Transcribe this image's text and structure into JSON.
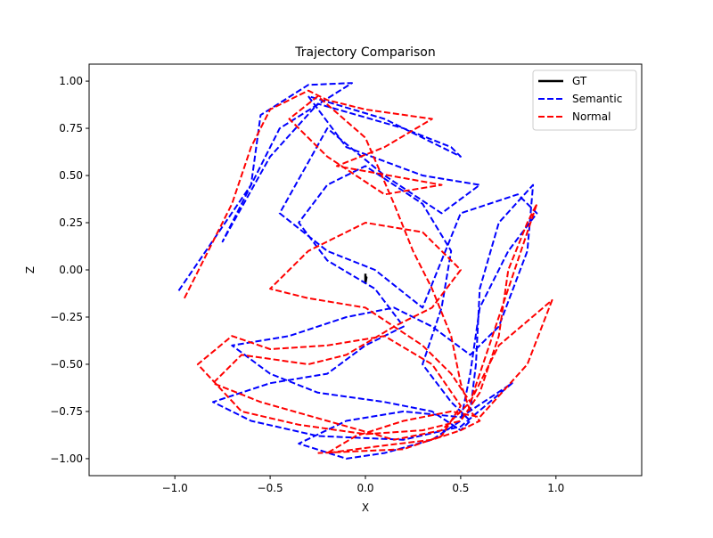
{
  "chart_data": {
    "type": "line",
    "title": "Trajectory Comparison",
    "xlabel": "X",
    "ylabel": "Z",
    "xlim": [
      -1.45,
      1.45
    ],
    "ylim": [
      -1.09,
      1.09
    ],
    "x_ticks": [
      -1.0,
      -0.5,
      0.0,
      0.5,
      1.0
    ],
    "x_tick_labels": [
      "−1.0",
      "−0.5",
      "0.0",
      "0.5",
      "1.0"
    ],
    "y_ticks": [
      -1.0,
      -0.75,
      -0.5,
      -0.25,
      0.0,
      0.25,
      0.5,
      0.75,
      1.0
    ],
    "y_tick_labels": [
      "−1.00",
      "−0.75",
      "−0.50",
      "−0.25",
      "0.00",
      "0.25",
      "0.50",
      "0.75",
      "1.00"
    ],
    "grid": false,
    "legend_position": "top-right",
    "series": [
      {
        "name": "GT",
        "color": "#000000",
        "style": "solid",
        "points": [
          [
            0.0,
            -0.02
          ],
          [
            0.0,
            -0.07
          ],
          [
            0.005,
            -0.04
          ],
          [
            0.0,
            -0.06
          ]
        ]
      },
      {
        "name": "Semantic",
        "color": "#0000ff",
        "style": "dashed",
        "points": [
          [
            -0.98,
            -0.11
          ],
          [
            -0.6,
            0.45
          ],
          [
            -0.55,
            0.82
          ],
          [
            -0.3,
            0.98
          ],
          [
            -0.07,
            0.99
          ],
          [
            -0.45,
            0.75
          ],
          [
            -0.75,
            0.15
          ],
          [
            -0.5,
            0.6
          ],
          [
            -0.25,
            0.88
          ],
          [
            0.2,
            0.75
          ],
          [
            0.45,
            0.65
          ],
          [
            0.5,
            0.6
          ],
          [
            0.1,
            0.8
          ],
          [
            -0.3,
            0.92
          ],
          [
            -0.1,
            0.65
          ],
          [
            0.3,
            0.5
          ],
          [
            0.6,
            0.45
          ],
          [
            0.4,
            0.3
          ],
          [
            0.1,
            0.5
          ],
          [
            -0.2,
            0.75
          ],
          [
            -0.45,
            0.3
          ],
          [
            -0.2,
            0.1
          ],
          [
            0.05,
            0.0
          ],
          [
            0.3,
            -0.2
          ],
          [
            0.5,
            0.3
          ],
          [
            0.8,
            0.4
          ],
          [
            0.9,
            0.3
          ],
          [
            0.75,
            0.1
          ],
          [
            0.6,
            -0.2
          ],
          [
            0.55,
            -0.55
          ],
          [
            0.5,
            -0.8
          ],
          [
            0.35,
            -0.9
          ],
          [
            0.1,
            -0.97
          ],
          [
            -0.1,
            -1.0
          ],
          [
            -0.35,
            -0.92
          ],
          [
            -0.1,
            -0.8
          ],
          [
            0.2,
            -0.75
          ],
          [
            0.5,
            -0.78
          ],
          [
            0.77,
            -0.6
          ],
          [
            0.5,
            -0.83
          ],
          [
            0.2,
            -0.9
          ],
          [
            -0.25,
            -0.88
          ],
          [
            -0.6,
            -0.8
          ],
          [
            -0.8,
            -0.7
          ],
          [
            -0.5,
            -0.6
          ],
          [
            -0.2,
            -0.55
          ],
          [
            0.0,
            -0.4
          ],
          [
            0.2,
            -0.3
          ],
          [
            0.05,
            -0.1
          ],
          [
            -0.2,
            0.05
          ],
          [
            -0.35,
            0.25
          ],
          [
            -0.2,
            0.45
          ],
          [
            0.0,
            0.55
          ],
          [
            0.3,
            0.35
          ],
          [
            0.45,
            0.1
          ],
          [
            0.4,
            -0.2
          ],
          [
            0.3,
            -0.5
          ],
          [
            0.45,
            -0.7
          ],
          [
            0.55,
            -0.8
          ],
          [
            0.5,
            -0.85
          ],
          [
            0.35,
            -0.75
          ],
          [
            0.1,
            -0.7
          ],
          [
            -0.25,
            -0.65
          ],
          [
            -0.5,
            -0.55
          ],
          [
            -0.7,
            -0.4
          ],
          [
            -0.4,
            -0.35
          ],
          [
            -0.1,
            -0.25
          ],
          [
            0.15,
            -0.2
          ],
          [
            0.35,
            -0.3
          ],
          [
            0.55,
            -0.45
          ],
          [
            0.7,
            -0.3
          ],
          [
            0.85,
            0.1
          ],
          [
            0.88,
            0.45
          ],
          [
            0.7,
            0.25
          ],
          [
            0.6,
            -0.1
          ],
          [
            0.58,
            -0.5
          ],
          [
            0.55,
            -0.75
          ]
        ]
      },
      {
        "name": "Normal",
        "color": "#ff0000",
        "style": "dashed",
        "points": [
          [
            -0.95,
            -0.15
          ],
          [
            -0.7,
            0.35
          ],
          [
            -0.6,
            0.65
          ],
          [
            -0.5,
            0.85
          ],
          [
            -0.3,
            0.95
          ],
          [
            -0.2,
            0.9
          ],
          [
            0.0,
            0.85
          ],
          [
            0.35,
            0.8
          ],
          [
            0.1,
            0.65
          ],
          [
            -0.15,
            0.55
          ],
          [
            0.4,
            0.45
          ],
          [
            0.1,
            0.4
          ],
          [
            -0.2,
            0.6
          ],
          [
            -0.4,
            0.8
          ],
          [
            -0.25,
            0.92
          ],
          [
            0.0,
            0.7
          ],
          [
            0.15,
            0.35
          ],
          [
            0.25,
            0.1
          ],
          [
            0.35,
            -0.1
          ],
          [
            0.45,
            -0.35
          ],
          [
            0.5,
            -0.6
          ],
          [
            0.55,
            -0.75
          ],
          [
            0.6,
            -0.8
          ],
          [
            0.5,
            -0.85
          ],
          [
            0.35,
            -0.9
          ],
          [
            0.1,
            -0.93
          ],
          [
            -0.2,
            -0.97
          ],
          [
            -0.05,
            -0.88
          ],
          [
            0.2,
            -0.8
          ],
          [
            0.45,
            -0.75
          ],
          [
            0.6,
            -0.78
          ],
          [
            0.85,
            -0.5
          ],
          [
            0.98,
            -0.16
          ],
          [
            0.7,
            -0.4
          ],
          [
            0.55,
            -0.7
          ],
          [
            0.4,
            -0.85
          ],
          [
            0.15,
            -0.9
          ],
          [
            -0.2,
            -0.8
          ],
          [
            -0.55,
            -0.7
          ],
          [
            -0.8,
            -0.6
          ],
          [
            -0.65,
            -0.45
          ],
          [
            -0.3,
            -0.5
          ],
          [
            -0.1,
            -0.45
          ],
          [
            0.15,
            -0.3
          ],
          [
            0.35,
            -0.2
          ],
          [
            0.5,
            0.0
          ],
          [
            0.3,
            0.2
          ],
          [
            0.0,
            0.25
          ],
          [
            -0.3,
            0.1
          ],
          [
            -0.5,
            -0.1
          ],
          [
            -0.3,
            -0.15
          ],
          [
            0.0,
            -0.2
          ],
          [
            0.3,
            -0.4
          ],
          [
            0.45,
            -0.55
          ],
          [
            0.55,
            -0.7
          ],
          [
            0.65,
            -0.4
          ],
          [
            0.75,
            -0.1
          ],
          [
            0.85,
            0.2
          ],
          [
            0.9,
            0.35
          ],
          [
            0.85,
            0.25
          ],
          [
            0.75,
            0.0
          ],
          [
            0.7,
            -0.35
          ],
          [
            0.6,
            -0.65
          ],
          [
            0.5,
            -0.8
          ],
          [
            0.3,
            -0.85
          ],
          [
            0.0,
            -0.87
          ],
          [
            -0.35,
            -0.82
          ],
          [
            -0.65,
            -0.75
          ],
          [
            -0.88,
            -0.5
          ],
          [
            -0.7,
            -0.35
          ],
          [
            -0.5,
            -0.42
          ],
          [
            -0.2,
            -0.4
          ],
          [
            0.1,
            -0.35
          ],
          [
            0.35,
            -0.5
          ],
          [
            0.5,
            -0.72
          ],
          [
            0.4,
            -0.88
          ],
          [
            0.2,
            -0.95
          ],
          [
            -0.25,
            -0.97
          ]
        ]
      }
    ]
  }
}
